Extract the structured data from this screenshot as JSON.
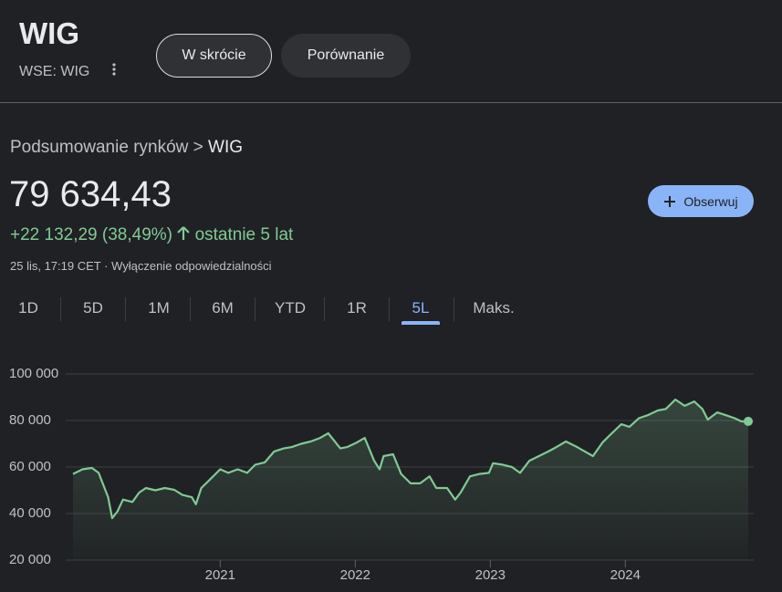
{
  "header": {
    "title": "WIG",
    "ticker": "WSE: WIG",
    "tabs": [
      "W skrócie",
      "Porównanie"
    ]
  },
  "breadcrumb": {
    "parent": "Podsumowanie rynków",
    "separator": ">",
    "current": "WIG"
  },
  "quote": {
    "price": "79 634,43",
    "change": "+22 132,29 (38,49%)",
    "period": "ostatnie 5 lat",
    "timestamp": "25 lis, 17:19 CET",
    "dot": "·",
    "disclaimer": "Wyłączenie odpowiedzialności",
    "follow": "Obserwuj"
  },
  "ranges": [
    "1D",
    "5D",
    "1M",
    "6M",
    "YTD",
    "1R",
    "5L",
    "Maks."
  ],
  "chart_data": {
    "type": "line",
    "color": "#81c995",
    "grid": true,
    "x": [
      2019.91,
      2019.98,
      2020.05,
      2020.1,
      2020.17,
      2020.2,
      2020.24,
      2020.28,
      2020.35,
      2020.4,
      2020.45,
      2020.52,
      2020.59,
      2020.66,
      2020.72,
      2020.79,
      2020.82,
      2020.86,
      2020.93,
      2021.0,
      2021.06,
      2021.13,
      2021.2,
      2021.26,
      2021.33,
      2021.4,
      2021.47,
      2021.53,
      2021.6,
      2021.67,
      2021.74,
      2021.8,
      2021.89,
      2021.94,
      2022.01,
      2022.07,
      2022.14,
      2022.18,
      2022.21,
      2022.28,
      2022.34,
      2022.41,
      2022.48,
      2022.55,
      2022.6,
      2022.68,
      2022.74,
      2022.78,
      2022.85,
      2022.92,
      2022.99,
      2023.02,
      2023.09,
      2023.16,
      2023.22,
      2023.29,
      2023.36,
      2023.43,
      2023.49,
      2023.56,
      2023.63,
      2023.7,
      2023.76,
      2023.83,
      2023.9,
      2023.97,
      2024.03,
      2024.1,
      2024.17,
      2024.24,
      2024.3,
      2024.37,
      2024.44,
      2024.51,
      2024.57,
      2024.61,
      2024.68,
      2024.74,
      2024.81,
      2024.86,
      2024.91
    ],
    "values": [
      57000,
      59000,
      59600,
      57500,
      47000,
      38000,
      41000,
      46000,
      45000,
      49000,
      51000,
      50000,
      51000,
      50200,
      48000,
      47000,
      44000,
      51000,
      55000,
      59000,
      57500,
      59000,
      57500,
      61000,
      62000,
      66700,
      68000,
      68600,
      70000,
      71000,
      72500,
      74500,
      68000,
      68600,
      70500,
      72500,
      62700,
      59000,
      64700,
      65500,
      57000,
      53000,
      53000,
      56000,
      51000,
      51000,
      46000,
      49000,
      56000,
      57000,
      57500,
      61600,
      61000,
      60000,
      57500,
      62700,
      64700,
      66700,
      68600,
      71000,
      69000,
      66700,
      64700,
      70500,
      74500,
      78400,
      77300,
      81000,
      82400,
      84300,
      85000,
      89000,
      86300,
      88200,
      85000,
      80400,
      83500,
      82400,
      81000,
      79600,
      79634.43
    ],
    "xlim": [
      2019.91,
      2024.91
    ],
    "xticks": [
      2021,
      2022,
      2023,
      2024
    ],
    "ylim": [
      20000,
      100000
    ],
    "yticks": [
      {
        "value": 20000,
        "label": "20 000"
      },
      {
        "value": 40000,
        "label": "40 000"
      },
      {
        "value": 60000,
        "label": "60 000"
      },
      {
        "value": 80000,
        "label": "80 000"
      },
      {
        "value": 100000,
        "label": "100 000"
      }
    ]
  }
}
